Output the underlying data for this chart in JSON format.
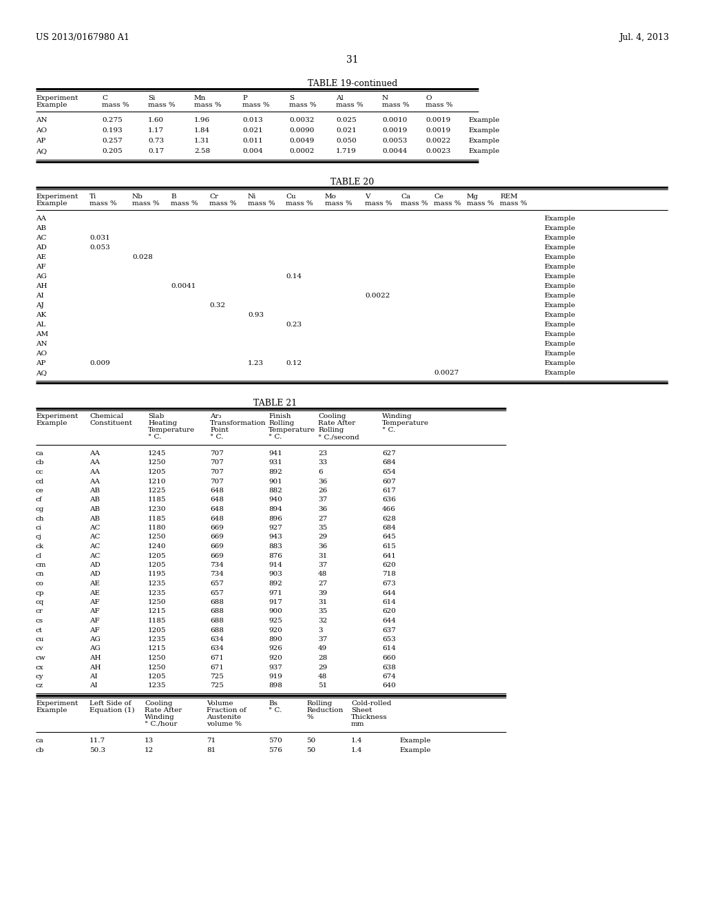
{
  "header_left": "US 2013/0167980 A1",
  "header_right": "Jul. 4, 2013",
  "page_number": "31",
  "bg_color": "#ffffff",
  "text_color": "#000000",
  "table19_title": "TABLE 19-continued",
  "table19_data": [
    [
      "AN",
      "0.275",
      "1.60",
      "1.96",
      "0.013",
      "0.0032",
      "0.025",
      "0.0010",
      "0.0019",
      "Example"
    ],
    [
      "AO",
      "0.193",
      "1.17",
      "1.84",
      "0.021",
      "0.0090",
      "0.021",
      "0.0019",
      "0.0019",
      "Example"
    ],
    [
      "AP",
      "0.257",
      "0.73",
      "1.31",
      "0.011",
      "0.0049",
      "0.050",
      "0.0053",
      "0.0022",
      "Example"
    ],
    [
      "AQ",
      "0.205",
      "0.17",
      "2.58",
      "0.004",
      "0.0002",
      "1.719",
      "0.0044",
      "0.0023",
      "Example"
    ]
  ],
  "table20_title": "TABLE 20",
  "table20_data": [
    [
      "AA",
      "",
      "",
      "",
      "",
      "",
      "",
      "",
      "",
      "",
      "",
      "",
      "Example"
    ],
    [
      "AB",
      "",
      "",
      "",
      "",
      "",
      "",
      "",
      "",
      "",
      "",
      "",
      "Example"
    ],
    [
      "AC",
      "0.031",
      "",
      "",
      "",
      "",
      "",
      "",
      "",
      "",
      "",
      "",
      "Example"
    ],
    [
      "AD",
      "0.053",
      "",
      "",
      "",
      "",
      "",
      "",
      "",
      "",
      "",
      "",
      "Example"
    ],
    [
      "AE",
      "",
      "0.028",
      "",
      "",
      "",
      "",
      "",
      "",
      "",
      "",
      "",
      "Example"
    ],
    [
      "AF",
      "",
      "",
      "",
      "",
      "",
      "",
      "",
      "",
      "",
      "",
      "",
      "Example"
    ],
    [
      "AG",
      "",
      "",
      "",
      "",
      "",
      "0.14",
      "",
      "",
      "",
      "",
      "",
      "Example"
    ],
    [
      "AH",
      "",
      "",
      "0.0041",
      "",
      "",
      "",
      "",
      "",
      "",
      "",
      "",
      "Example"
    ],
    [
      "AI",
      "",
      "",
      "",
      "",
      "",
      "",
      "",
      "0.0022",
      "",
      "",
      "",
      "Example"
    ],
    [
      "AJ",
      "",
      "",
      "",
      "0.32",
      "",
      "",
      "",
      "",
      "",
      "",
      "",
      "Example"
    ],
    [
      "AK",
      "",
      "",
      "",
      "",
      "0.93",
      "",
      "",
      "",
      "",
      "",
      "",
      "Example"
    ],
    [
      "AL",
      "",
      "",
      "",
      "",
      "",
      "0.23",
      "",
      "",
      "",
      "",
      "",
      "Example"
    ],
    [
      "AM",
      "",
      "",
      "",
      "",
      "",
      "",
      "",
      "",
      "",
      "",
      "",
      "Example"
    ],
    [
      "AN",
      "",
      "",
      "",
      "",
      "",
      "",
      "",
      "",
      "",
      "",
      "",
      "Example"
    ],
    [
      "AO",
      "",
      "",
      "",
      "",
      "",
      "",
      "",
      "",
      "",
      "",
      "",
      "Example"
    ],
    [
      "AP",
      "0.009",
      "",
      "",
      "",
      "1.23",
      "0.12",
      "",
      "",
      "",
      "",
      "",
      "Example"
    ],
    [
      "AQ",
      "",
      "",
      "",
      "",
      "",
      "",
      "",
      "",
      "",
      "0.0027",
      "",
      "Example"
    ]
  ],
  "table21_title": "TABLE 21",
  "table21_data1": [
    [
      "ca",
      "AA",
      "1245",
      "707",
      "941",
      "23",
      "627"
    ],
    [
      "cb",
      "AA",
      "1250",
      "707",
      "931",
      "33",
      "684"
    ],
    [
      "cc",
      "AA",
      "1205",
      "707",
      "892",
      "6",
      "654"
    ],
    [
      "cd",
      "AA",
      "1210",
      "707",
      "901",
      "36",
      "607"
    ],
    [
      "ce",
      "AB",
      "1225",
      "648",
      "882",
      "26",
      "617"
    ],
    [
      "cf",
      "AB",
      "1185",
      "648",
      "940",
      "37",
      "636"
    ],
    [
      "cg",
      "AB",
      "1230",
      "648",
      "894",
      "36",
      "466"
    ],
    [
      "ch",
      "AB",
      "1185",
      "648",
      "896",
      "27",
      "628"
    ],
    [
      "ci",
      "AC",
      "1180",
      "669",
      "927",
      "35",
      "684"
    ],
    [
      "cj",
      "AC",
      "1250",
      "669",
      "943",
      "29",
      "645"
    ],
    [
      "ck",
      "AC",
      "1240",
      "669",
      "883",
      "36",
      "615"
    ],
    [
      "cl",
      "AC",
      "1205",
      "669",
      "876",
      "31",
      "641"
    ],
    [
      "cm",
      "AD",
      "1205",
      "734",
      "914",
      "37",
      "620"
    ],
    [
      "cn",
      "AD",
      "1195",
      "734",
      "903",
      "48",
      "718"
    ],
    [
      "co",
      "AE",
      "1235",
      "657",
      "892",
      "27",
      "673"
    ],
    [
      "cp",
      "AE",
      "1235",
      "657",
      "971",
      "39",
      "644"
    ],
    [
      "cq",
      "AF",
      "1250",
      "688",
      "917",
      "31",
      "614"
    ],
    [
      "cr",
      "AF",
      "1215",
      "688",
      "900",
      "35",
      "620"
    ],
    [
      "cs",
      "AF",
      "1185",
      "688",
      "925",
      "32",
      "644"
    ],
    [
      "ct",
      "AF",
      "1205",
      "688",
      "920",
      "3",
      "637"
    ],
    [
      "cu",
      "AG",
      "1235",
      "634",
      "890",
      "37",
      "653"
    ],
    [
      "cv",
      "AG",
      "1215",
      "634",
      "926",
      "49",
      "614"
    ],
    [
      "cw",
      "AH",
      "1250",
      "671",
      "920",
      "28",
      "660"
    ],
    [
      "cx",
      "AH",
      "1250",
      "671",
      "937",
      "29",
      "638"
    ],
    [
      "cy",
      "AI",
      "1205",
      "725",
      "919",
      "48",
      "674"
    ],
    [
      "cz",
      "AI",
      "1235",
      "725",
      "898",
      "51",
      "640"
    ]
  ],
  "table21_data2": [
    [
      "ca",
      "11.7",
      "13",
      "71",
      "570",
      "50",
      "1.4",
      "Example"
    ],
    [
      "cb",
      "50.3",
      "12",
      "81",
      "576",
      "50",
      "1.4",
      "Example"
    ]
  ]
}
